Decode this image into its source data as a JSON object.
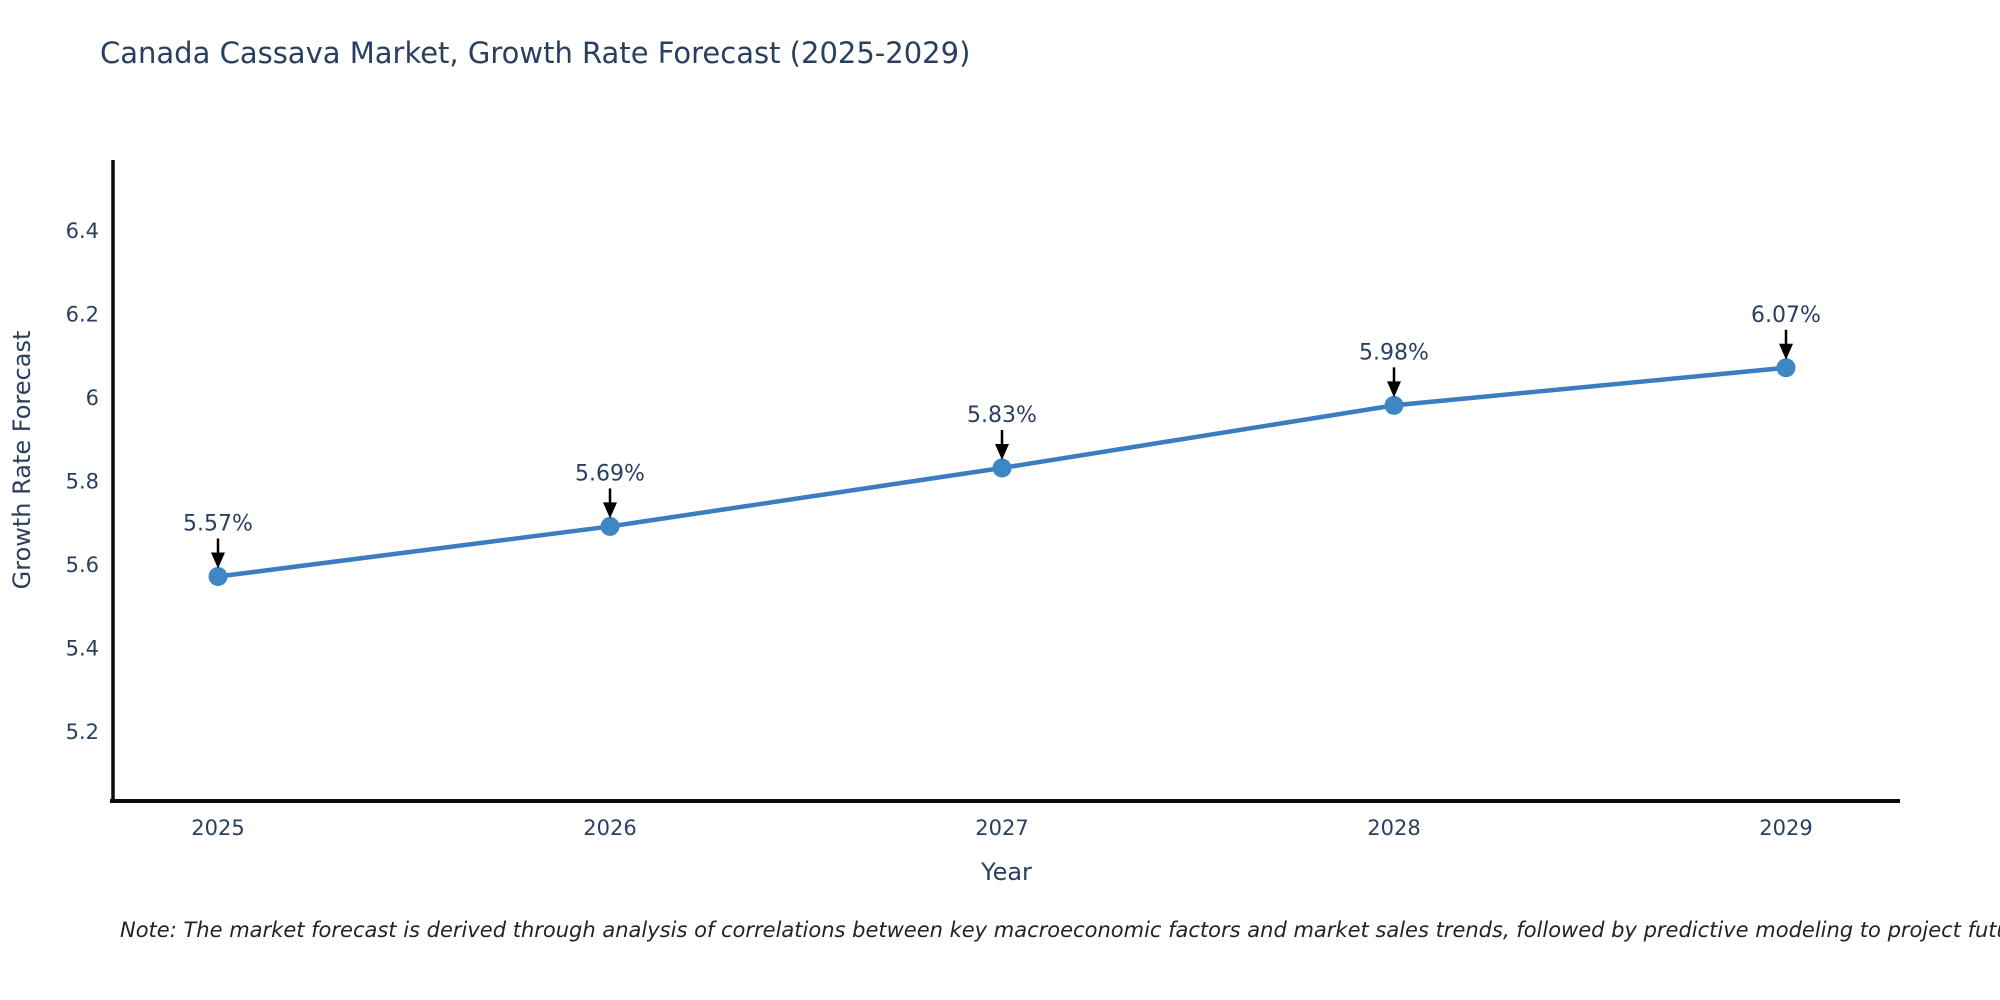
{
  "page": {
    "background": "#ffffff"
  },
  "chart_data": {
    "type": "line",
    "title": "Canada Cassava Market, Growth Rate Forecast (2025-2029)",
    "xlabel": "Year",
    "ylabel": "Growth Rate Forecast",
    "categories": [
      "2025",
      "2026",
      "2027",
      "2028",
      "2029"
    ],
    "values": [
      5.57,
      5.69,
      5.83,
      5.98,
      6.07
    ],
    "data_labels": [
      "5.57%",
      "5.69%",
      "5.83%",
      "5.98%",
      "6.07%"
    ],
    "y_tick_values": [
      6.4,
      6.2,
      6.0,
      5.8,
      5.6,
      5.4,
      5.2
    ],
    "y_tick_labels": [
      "6.4",
      "6.2",
      "6",
      "5.8",
      "5.6",
      "5.4",
      "5.2"
    ],
    "ylim": [
      5.04,
      6.57
    ],
    "grid": false,
    "legend": false,
    "line_color": "#3a7ebf",
    "marker_color": "#3f86c4",
    "axis_color": "#0b0b0b",
    "text_color": "#2a3f5f",
    "annotation_arrow_color": "#000000",
    "note": "Note: The market forecast is derived through analysis of correlations between key macroeconomic factors and market sales trends, followed by predictive modeling to project future sales"
  }
}
